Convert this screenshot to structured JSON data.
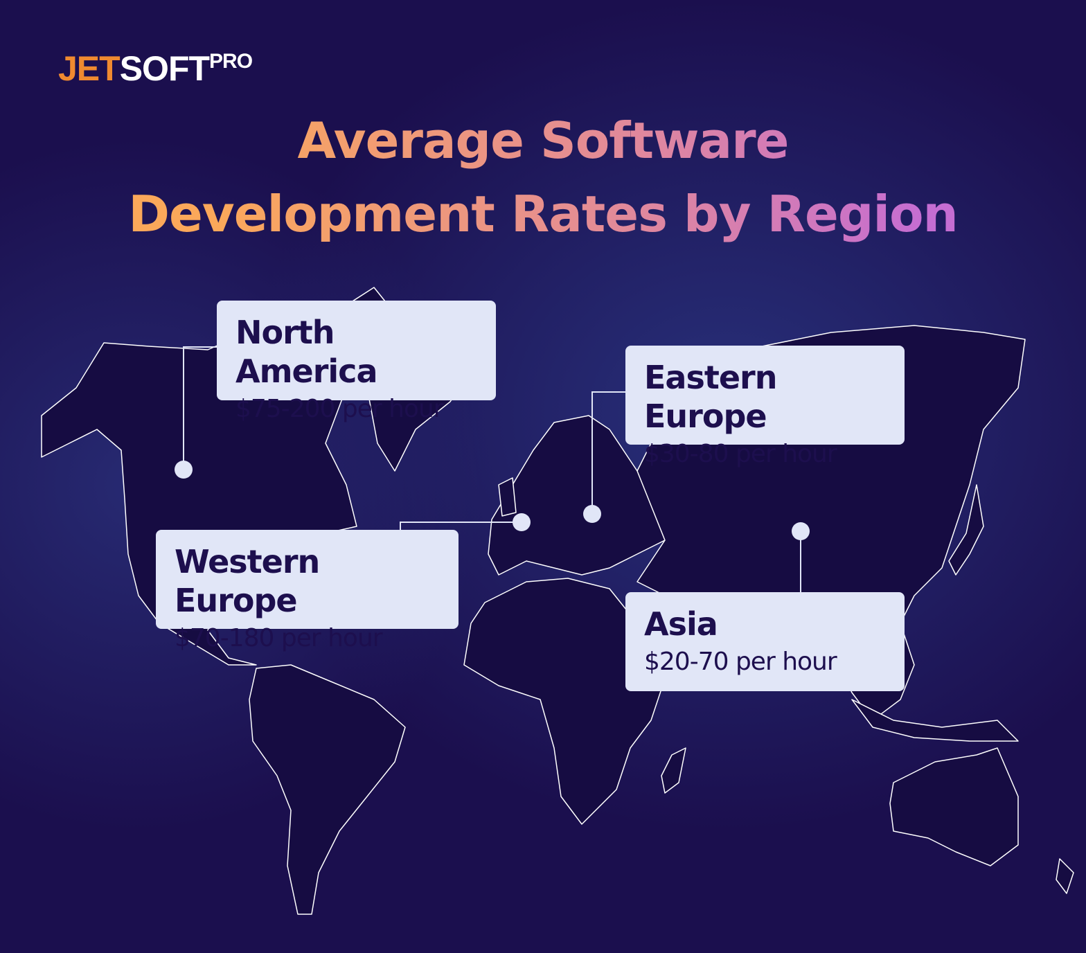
{
  "logo": {
    "part1": "JET",
    "part2": "SOFT",
    "superscript": "PRO"
  },
  "title": {
    "line1": "Average Software",
    "line2": "Development Rates by Region"
  },
  "regions": [
    {
      "name": "North America",
      "rate": "$75-200 per hour"
    },
    {
      "name": "Eastern Europe",
      "rate": "$30-80 per hour"
    },
    {
      "name": "Western Europe",
      "rate": "$70-180 per hour"
    },
    {
      "name": "Asia",
      "rate": "$20-70 per hour"
    }
  ],
  "colors": {
    "background": "#1b0f4e",
    "card": "#e1e6f7",
    "card_text": "#1d0f4e",
    "logo_accent": "#f08a30",
    "title_gradient": [
      "#fba85a",
      "#c56dd2"
    ],
    "land": "#160c42",
    "border": "#ffffff"
  }
}
